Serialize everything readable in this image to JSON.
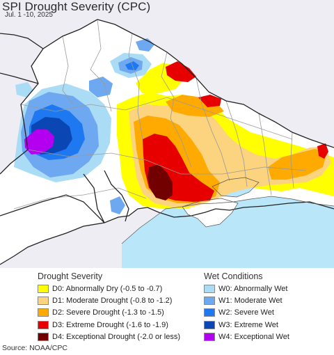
{
  "header": {
    "title": "SPI Drought Severity (CPC)",
    "subtitle": "Jul. 1 -10, 2025"
  },
  "legend": {
    "drought": {
      "heading": "Drought Severity",
      "items": [
        {
          "label": "D0: Abnormally Dry (-0.5 to -0.7)",
          "color": "#ffff00"
        },
        {
          "label": "D1: Moderate Drought (-0.8 to -1.2)",
          "color": "#fcd37f"
        },
        {
          "label": "D2: Severe Drought (-1.3 to -1.5)",
          "color": "#ffaa00"
        },
        {
          "label": "D3: Extreme Drought (-1.6 to -1.9)",
          "color": "#e60000"
        },
        {
          "label": "D4: Exceptional Drought (-2.0 or less)",
          "color": "#730000"
        }
      ]
    },
    "wet": {
      "heading": "Wet Conditions",
      "items": [
        {
          "label": "W0: Abnormally Wet",
          "color": "#aadcf5"
        },
        {
          "label": "W1: Moderate Wet",
          "color": "#6ea8f0"
        },
        {
          "label": "W2: Severe Wet",
          "color": "#1e78f0"
        },
        {
          "label": "W3: Extreme Wet",
          "color": "#0a46b4"
        },
        {
          "label": "W4: Exceptional Wet",
          "color": "#b400f0"
        }
      ]
    }
  },
  "map": {
    "colors": {
      "outside": "#eeedf3",
      "land": "#ffffff",
      "sea": "#b9e6f8",
      "border": "#222222",
      "admin": "#9a9a9a"
    }
  },
  "source": "Source: NOAA/CPC"
}
